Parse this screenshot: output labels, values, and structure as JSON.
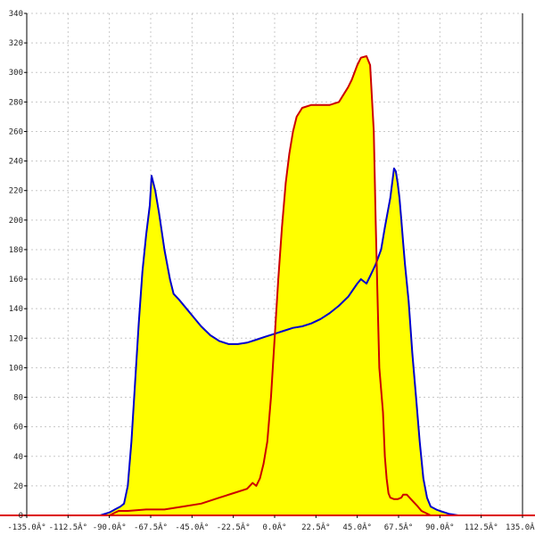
{
  "chart_data": {
    "type": "area",
    "title": "",
    "xlabel": "",
    "ylabel": "",
    "xlim": [
      -135,
      135
    ],
    "ylim": [
      0,
      340
    ],
    "x_ticks": [
      -135,
      -112.5,
      -90,
      -67.5,
      -45,
      -22.5,
      0,
      22.5,
      45,
      67.5,
      90,
      112.5,
      135
    ],
    "x_tick_labels": [
      "-135.0Â°",
      "-112.5Â°",
      "-90.0Â°",
      "-67.5Â°",
      "-45.0Â°",
      "-22.5Â°",
      "0.0Â°",
      "22.5Â°",
      "45.0Â°",
      "67.5Â°",
      "90.0Â°",
      "112.5Â°",
      "135.0Â°"
    ],
    "y_ticks": [
      0,
      20,
      40,
      60,
      80,
      100,
      120,
      140,
      160,
      180,
      200,
      220,
      240,
      260,
      280,
      300,
      320,
      340
    ],
    "y_tick_labels": [
      "0",
      "20",
      "40",
      "60",
      "80",
      "100",
      "120",
      "140",
      "160",
      "180",
      "200",
      "220",
      "240",
      "260",
      "280",
      "300",
      "320",
      "340"
    ],
    "grid": true,
    "fill_color": "#ffff00",
    "series": [
      {
        "color": "#0000cc",
        "x": [
          -95,
          -90,
          -87,
          -84,
          -82,
          -80,
          -78,
          -76,
          -74,
          -72,
          -70,
          -68,
          -67,
          -65,
          -63,
          -60,
          -57,
          -55,
          -52,
          -48,
          -44,
          -40,
          -35,
          -30,
          -25,
          -20,
          -15,
          -10,
          -5,
          0,
          5,
          10,
          15,
          20,
          25,
          30,
          35,
          40,
          45,
          47,
          50,
          52,
          55,
          58,
          60,
          63,
          65,
          66,
          67,
          68,
          69,
          70,
          71,
          73,
          75,
          77,
          79,
          81,
          83,
          85,
          88,
          90,
          95,
          100
        ],
        "y": [
          0,
          2,
          4,
          6,
          8,
          20,
          50,
          90,
          130,
          165,
          190,
          210,
          230,
          220,
          205,
          180,
          160,
          150,
          146,
          140,
          134,
          128,
          122,
          118,
          116,
          116,
          117,
          119,
          121,
          123,
          125,
          127,
          128,
          130,
          133,
          137,
          142,
          148,
          157,
          160,
          157,
          162,
          170,
          180,
          195,
          215,
          235,
          233,
          225,
          215,
          200,
          185,
          170,
          145,
          110,
          80,
          50,
          25,
          12,
          6,
          4,
          3,
          1,
          0
        ]
      },
      {
        "color": "#cc0000",
        "x": [
          -90,
          -85,
          -80,
          -70,
          -60,
          -50,
          -40,
          -30,
          -20,
          -15,
          -12,
          -10,
          -8,
          -6,
          -4,
          -2,
          0,
          2,
          4,
          6,
          8,
          10,
          12,
          15,
          20,
          25,
          30,
          35,
          40,
          42,
          45,
          47,
          50,
          52,
          54,
          55,
          56,
          57,
          59,
          60,
          61,
          62,
          63,
          65,
          67,
          69,
          70,
          72,
          75,
          78,
          80,
          85
        ],
        "y": [
          0,
          3,
          3,
          4,
          4,
          6,
          8,
          12,
          16,
          18,
          22,
          20,
          25,
          35,
          50,
          80,
          120,
          160,
          195,
          225,
          245,
          260,
          270,
          276,
          278,
          278,
          278,
          280,
          290,
          295,
          305,
          310,
          311,
          305,
          260,
          200,
          150,
          100,
          70,
          40,
          25,
          15,
          12,
          11,
          11,
          12,
          14,
          14,
          10,
          6,
          3,
          0
        ]
      }
    ]
  }
}
